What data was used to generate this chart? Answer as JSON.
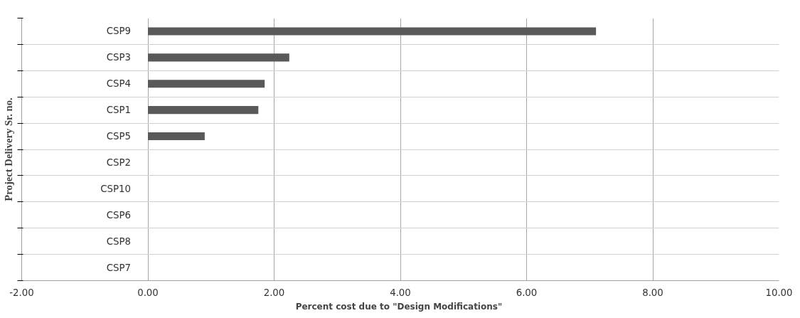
{
  "chart_data": {
    "type": "bar",
    "orientation": "horizontal",
    "xlabel": "Percent  cost due to \"Design Modifications\"",
    "ylabel": "Project Delivery Sr. no.",
    "categories": [
      "CSP9",
      "CSP3",
      "CSP4",
      "CSP1",
      "CSP5",
      "CSP2",
      "CSP10",
      "CSP6",
      "CSP8",
      "CSP7"
    ],
    "values": [
      7.1,
      2.24,
      1.85,
      1.75,
      0.9,
      0,
      0,
      0,
      0,
      0
    ],
    "color": "#595959",
    "xlim": [
      -2,
      10
    ],
    "xticks": [
      {
        "value": -2,
        "label": "-2.00"
      },
      {
        "value": 0,
        "label": "0.00"
      },
      {
        "value": 2,
        "label": "2.00"
      },
      {
        "value": 4,
        "label": "4.00"
      },
      {
        "value": 6,
        "label": "6.00"
      },
      {
        "value": 8,
        "label": "8.00"
      },
      {
        "value": 10,
        "label": "10.00"
      }
    ],
    "grid": true
  }
}
